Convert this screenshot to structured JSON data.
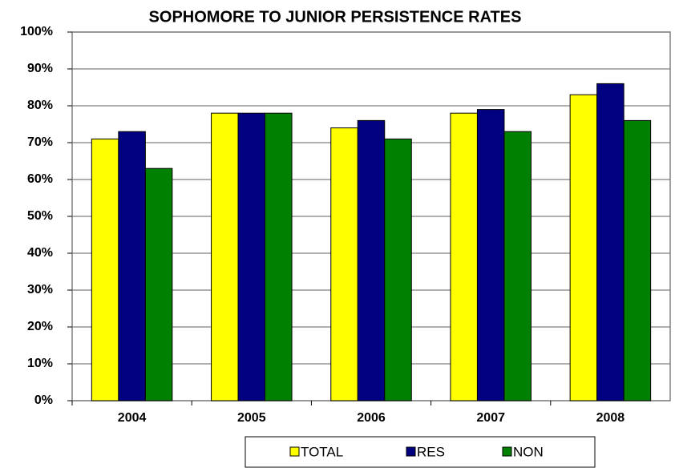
{
  "chart_data": {
    "type": "bar",
    "title": "SOPHOMORE TO JUNIOR PERSISTENCE RATES",
    "categories": [
      "2004",
      "2005",
      "2006",
      "2007",
      "2008"
    ],
    "series": [
      {
        "name": "TOTAL",
        "color": "#ffff00",
        "values": [
          71,
          78,
          74,
          78,
          83
        ]
      },
      {
        "name": "RES",
        "color": "#000080",
        "values": [
          73,
          78,
          76,
          79,
          86
        ]
      },
      {
        "name": "NON",
        "color": "#008000",
        "values": [
          63,
          78,
          71,
          73,
          76
        ]
      }
    ],
    "ylim": [
      0,
      100
    ],
    "yticks": [
      {
        "value": 0,
        "label": "0%"
      },
      {
        "value": 10,
        "label": "10%"
      },
      {
        "value": 20,
        "label": "20%"
      },
      {
        "value": 30,
        "label": "30%"
      },
      {
        "value": 40,
        "label": "40%"
      },
      {
        "value": 50,
        "label": "50%"
      },
      {
        "value": 60,
        "label": "60%"
      },
      {
        "value": 70,
        "label": "70%"
      },
      {
        "value": 80,
        "label": "80%"
      },
      {
        "value": 90,
        "label": "90%"
      },
      {
        "value": 100,
        "label": "100%"
      }
    ],
    "grid": true,
    "legend": "bottom"
  }
}
